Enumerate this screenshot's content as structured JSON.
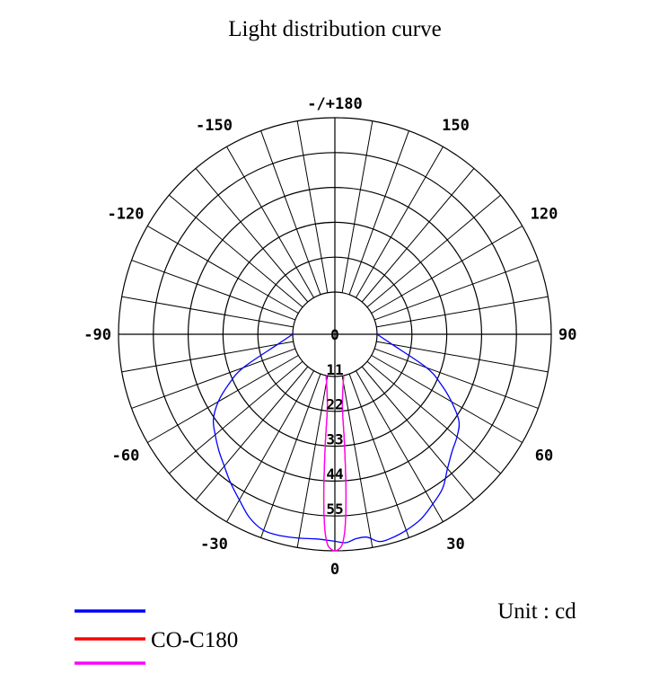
{
  "chart_data": {
    "type": "polar",
    "title": "Light distribution curve",
    "unit_label": "Unit : cd",
    "radial_ticks": [
      0,
      11,
      22,
      33,
      44,
      55
    ],
    "radial_max": 55,
    "angle_labels": [
      {
        "text": "-/+180",
        "angle": 180
      },
      {
        "text": "150",
        "angle": 150
      },
      {
        "text": "-150",
        "angle": -150
      },
      {
        "text": "120",
        "angle": 120
      },
      {
        "text": "-120",
        "angle": -120
      },
      {
        "text": "90",
        "angle": 90
      },
      {
        "text": "-90",
        "angle": -90
      },
      {
        "text": "60",
        "angle": 60
      },
      {
        "text": "-60",
        "angle": -60
      },
      {
        "text": "30",
        "angle": 30
      },
      {
        "text": "-30",
        "angle": -30
      },
      {
        "text": "0",
        "angle": 0
      }
    ],
    "series": [
      {
        "name": "",
        "color": "#0000ff",
        "points": [
          [
            -90,
            0
          ],
          [
            -80,
            5
          ],
          [
            -70,
            17.5
          ],
          [
            -65,
            23.5
          ],
          [
            -60,
            29.2
          ],
          [
            -55,
            33.5
          ],
          [
            -50,
            36
          ],
          [
            -45,
            38.5
          ],
          [
            -40,
            41
          ],
          [
            -35,
            44
          ],
          [
            -30,
            47
          ],
          [
            -25,
            50.5
          ],
          [
            -20,
            52.5
          ],
          [
            -15,
            52.5
          ],
          [
            -10,
            52
          ],
          [
            -5,
            51.5
          ],
          [
            0,
            52
          ],
          [
            3,
            52.5
          ],
          [
            6,
            51.5
          ],
          [
            9,
            51.5
          ],
          [
            12,
            53.5
          ],
          [
            15,
            53.5
          ],
          [
            20,
            52.5
          ],
          [
            25,
            51
          ],
          [
            30,
            48.5
          ],
          [
            35,
            46
          ],
          [
            40,
            42
          ],
          [
            45,
            39
          ],
          [
            50,
            37
          ],
          [
            55,
            34.5
          ],
          [
            60,
            29.2
          ],
          [
            65,
            23.5
          ],
          [
            70,
            17.5
          ],
          [
            80,
            5
          ],
          [
            90,
            0
          ]
        ]
      },
      {
        "name": "CO-C180",
        "color": "#ff0000",
        "points": [
          [
            -12,
            0
          ],
          [
            -6,
            9.4
          ],
          [
            -5,
            21.5
          ],
          [
            -4,
            37
          ],
          [
            -3,
            48
          ],
          [
            -2,
            53
          ],
          [
            -1,
            54.5
          ],
          [
            0,
            55
          ],
          [
            1,
            54.5
          ],
          [
            2,
            53
          ],
          [
            3,
            48
          ],
          [
            4,
            37
          ],
          [
            5,
            21.5
          ],
          [
            6,
            9.4
          ],
          [
            12,
            0
          ]
        ]
      },
      {
        "name": "",
        "color": "#ff00ff",
        "points": [
          [
            -12,
            0
          ],
          [
            -6,
            9.4
          ],
          [
            -5,
            21.5
          ],
          [
            -4,
            37
          ],
          [
            -3,
            48
          ],
          [
            -2,
            53
          ],
          [
            -1,
            54.5
          ],
          [
            0,
            55
          ],
          [
            1,
            54.5
          ],
          [
            2,
            53
          ],
          [
            3,
            48
          ],
          [
            4,
            37
          ],
          [
            5,
            21.5
          ],
          [
            6,
            9.4
          ],
          [
            12,
            0
          ]
        ]
      }
    ],
    "legend": [
      {
        "label": "",
        "color": "#0000ff"
      },
      {
        "label": "CO-C180",
        "color": "#ff0000"
      },
      {
        "label": "",
        "color": "#ff00ff"
      }
    ]
  }
}
